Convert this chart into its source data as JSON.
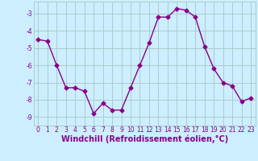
{
  "x": [
    0,
    1,
    2,
    3,
    4,
    5,
    6,
    7,
    8,
    9,
    10,
    11,
    12,
    13,
    14,
    15,
    16,
    17,
    18,
    19,
    20,
    21,
    22,
    23
  ],
  "y": [
    -4.5,
    -4.6,
    -6.0,
    -7.3,
    -7.3,
    -7.5,
    -8.8,
    -8.2,
    -8.6,
    -8.6,
    -7.3,
    -6.0,
    -4.7,
    -3.2,
    -3.2,
    -2.7,
    -2.8,
    -3.2,
    -4.9,
    -6.2,
    -7.0,
    -7.2,
    -8.1,
    -7.9
  ],
  "line_color": "#880088",
  "marker": "D",
  "markersize": 2.5,
  "linewidth": 1.0,
  "bg_color": "#cceeff",
  "grid_color": "#aacccc",
  "xlabel": "Windchill (Refroidissement éolien,°C)",
  "xlabel_color": "#880088",
  "xlabel_fontsize": 7,
  "yticks": [
    -9,
    -8,
    -7,
    -6,
    -5,
    -4,
    -3
  ],
  "ytick_labels": [
    "-9",
    "-8",
    "-7",
    "-6",
    "-5",
    "-4",
    "-3"
  ],
  "xticks": [
    0,
    1,
    2,
    3,
    4,
    5,
    6,
    7,
    8,
    9,
    10,
    11,
    12,
    13,
    14,
    15,
    16,
    17,
    18,
    19,
    20,
    21,
    22,
    23
  ],
  "ylim": [
    -9.5,
    -2.3
  ],
  "xlim": [
    -0.5,
    23.5
  ],
  "tick_color": "#880088",
  "tick_fontsize": 5.5
}
